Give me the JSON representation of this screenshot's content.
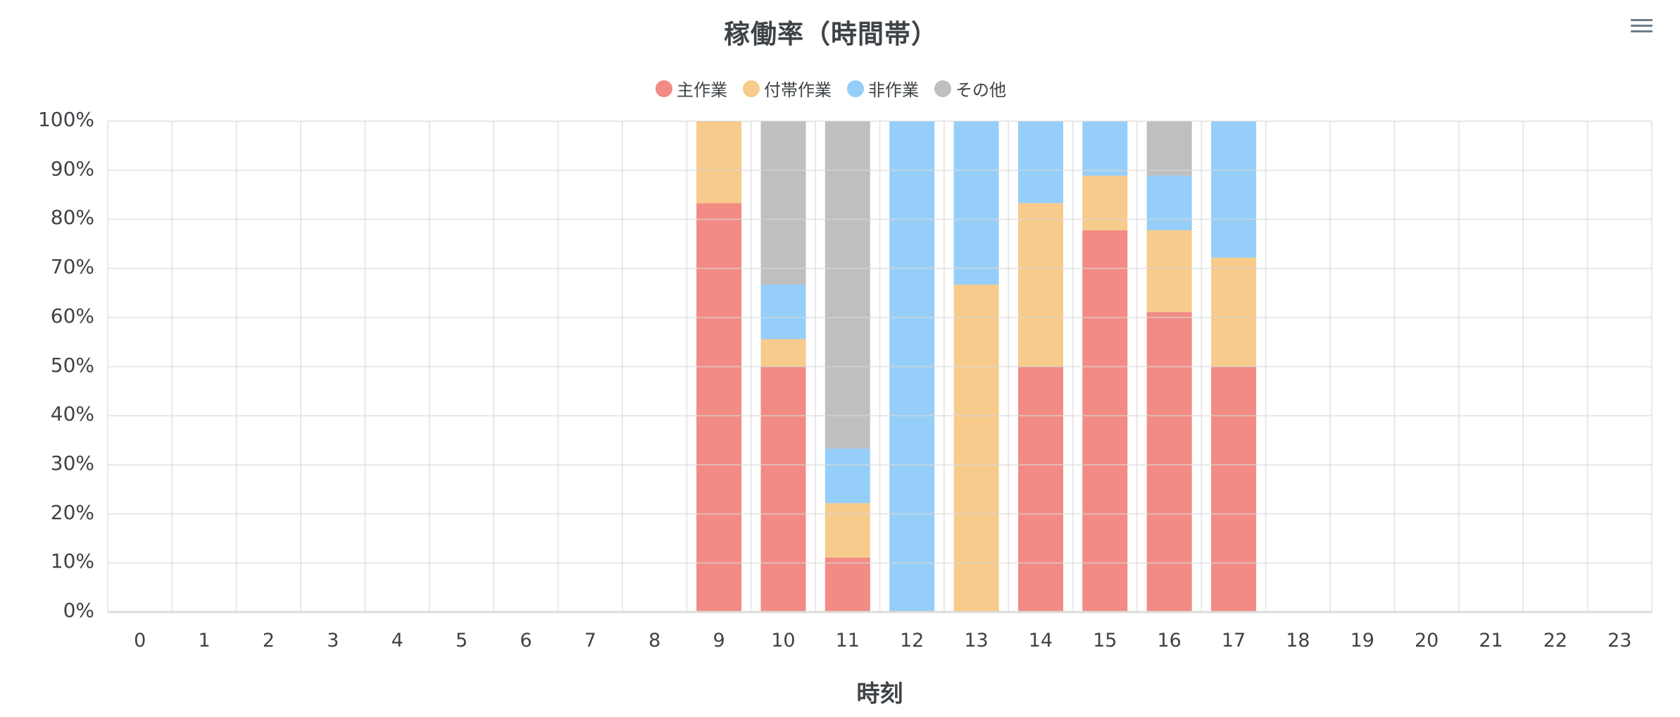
{
  "chart": {
    "title": "稼働率（時間帯）",
    "menu_icon": "hamburger-menu-icon",
    "xlabel": "時刻"
  },
  "legend": [
    {
      "label": "主作業",
      "color": "#F28B84"
    },
    {
      "label": "付帯作業",
      "color": "#F7CB8B"
    },
    {
      "label": "非作業",
      "color": "#95CEF9"
    },
    {
      "label": "その他",
      "color": "#BFBFBF"
    }
  ],
  "yticks": [
    "100%",
    "90%",
    "80%",
    "70%",
    "60%",
    "50%",
    "40%",
    "30%",
    "20%",
    "10%",
    "0%"
  ],
  "xticks": [
    "0",
    "1",
    "2",
    "3",
    "4",
    "5",
    "6",
    "7",
    "8",
    "9",
    "10",
    "11",
    "12",
    "13",
    "14",
    "15",
    "16",
    "17",
    "18",
    "19",
    "20",
    "21",
    "22",
    "23"
  ],
  "chart_data": {
    "type": "bar",
    "stacked": true,
    "title": "稼働率（時間帯）",
    "xlabel": "時刻",
    "ylabel": "",
    "ylim": [
      0,
      100
    ],
    "y_unit": "%",
    "grid": true,
    "legend_position": "top",
    "categories": [
      "0",
      "1",
      "2",
      "3",
      "4",
      "5",
      "6",
      "7",
      "8",
      "9",
      "10",
      "11",
      "12",
      "13",
      "14",
      "15",
      "16",
      "17",
      "18",
      "19",
      "20",
      "21",
      "22",
      "23"
    ],
    "series": [
      {
        "name": "主作業",
        "color": "#F28B84",
        "values": [
          0,
          0,
          0,
          0,
          0,
          0,
          0,
          0,
          0,
          83.3,
          50.0,
          11.1,
          0,
          0,
          50.0,
          77.8,
          61.1,
          50.0,
          0,
          0,
          0,
          0,
          0,
          0
        ]
      },
      {
        "name": "付帯作業",
        "color": "#F7CB8B",
        "values": [
          0,
          0,
          0,
          0,
          0,
          0,
          0,
          0,
          0,
          16.7,
          5.6,
          11.1,
          0,
          66.7,
          33.3,
          11.1,
          16.7,
          22.2,
          0,
          0,
          0,
          0,
          0,
          0
        ]
      },
      {
        "name": "非作業",
        "color": "#95CEF9",
        "values": [
          0,
          0,
          0,
          0,
          0,
          0,
          0,
          0,
          0,
          0,
          11.1,
          11.1,
          100.0,
          33.3,
          16.7,
          11.1,
          11.1,
          27.8,
          0,
          0,
          0,
          0,
          0,
          0
        ]
      },
      {
        "name": "その他",
        "color": "#BFBFBF",
        "values": [
          0,
          0,
          0,
          0,
          0,
          0,
          0,
          0,
          0,
          0,
          33.3,
          66.7,
          0,
          0,
          0,
          0,
          11.1,
          0,
          0,
          0,
          0,
          0,
          0,
          0
        ]
      }
    ]
  }
}
